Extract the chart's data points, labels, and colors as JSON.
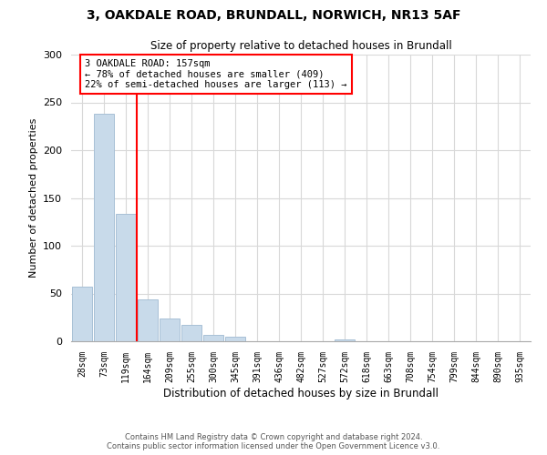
{
  "title": "3, OAKDALE ROAD, BRUNDALL, NORWICH, NR13 5AF",
  "subtitle": "Size of property relative to detached houses in Brundall",
  "xlabel": "Distribution of detached houses by size in Brundall",
  "ylabel": "Number of detached properties",
  "footer_line1": "Contains HM Land Registry data © Crown copyright and database right 2024.",
  "footer_line2": "Contains public sector information licensed under the Open Government Licence v3.0.",
  "bar_labels": [
    "28sqm",
    "73sqm",
    "119sqm",
    "164sqm",
    "209sqm",
    "255sqm",
    "300sqm",
    "345sqm",
    "391sqm",
    "436sqm",
    "482sqm",
    "527sqm",
    "572sqm",
    "618sqm",
    "663sqm",
    "708sqm",
    "754sqm",
    "799sqm",
    "844sqm",
    "890sqm",
    "935sqm"
  ],
  "bar_values": [
    57,
    238,
    133,
    44,
    24,
    17,
    7,
    5,
    0,
    0,
    0,
    0,
    2,
    0,
    0,
    0,
    0,
    0,
    0,
    0,
    0
  ],
  "bar_color": "#c8daea",
  "bar_edge_color": "#a8c0d6",
  "vline_color": "red",
  "vline_x_index": 2.5,
  "annotation_title": "3 OAKDALE ROAD: 157sqm",
  "annotation_line1": "← 78% of detached houses are smaller (409)",
  "annotation_line2": "22% of semi-detached houses are larger (113) →",
  "annotation_box_color": "white",
  "annotation_box_edge": "red",
  "ylim": [
    0,
    300
  ],
  "yticks": [
    0,
    50,
    100,
    150,
    200,
    250,
    300
  ],
  "background_color": "white",
  "grid_color": "#d8d8d8"
}
